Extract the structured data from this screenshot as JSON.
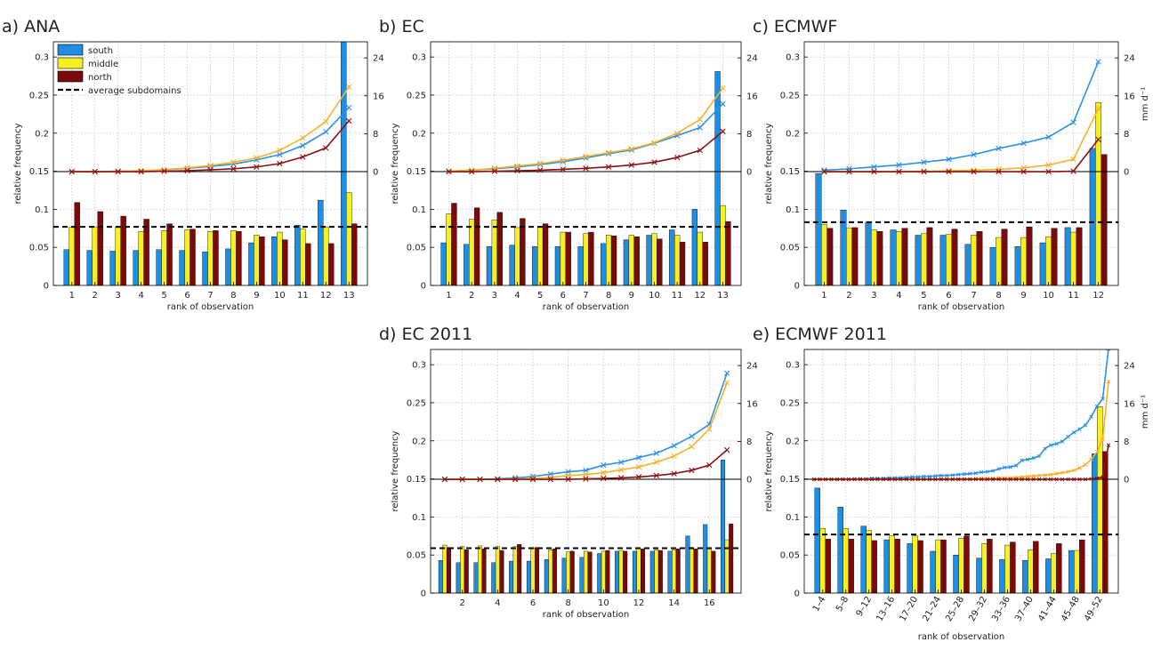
{
  "figure": {
    "x_label": "rank of observation",
    "y_label_left": "relative frequency",
    "y_label_right": "mm d⁻¹",
    "left_ticks": [
      "0",
      "0.05",
      "0.1",
      "0.15",
      "0.2",
      "0.25",
      "0.3"
    ],
    "right_ticks": [
      "0",
      "8",
      "16",
      "24"
    ]
  },
  "legend": {
    "items": [
      {
        "label": "south",
        "color": "#1f8de0"
      },
      {
        "label": "middle",
        "color": "#f5f023"
      },
      {
        "label": "north",
        "color": "#7a0a0a"
      },
      {
        "label": "average subdomains",
        "color": "#000000",
        "style": "dashed"
      }
    ]
  },
  "colors": {
    "south_bar": "#1f8de0",
    "middle_bar": "#f5f023",
    "north_bar": "#7a0a0a",
    "south_line": "#2a90e8",
    "middle_line": "#f6b12a",
    "north_line": "#8b1010"
  },
  "chart_data": [
    {
      "type": "bar",
      "title": "a) ANA",
      "categories": [
        "1",
        "2",
        "3",
        "4",
        "5",
        "6",
        "7",
        "8",
        "9",
        "10",
        "11",
        "12",
        "13"
      ],
      "series": [
        {
          "name": "south",
          "values": [
            0.047,
            0.046,
            0.045,
            0.046,
            0.047,
            0.046,
            0.044,
            0.048,
            0.056,
            0.064,
            0.079,
            0.112,
            0.32
          ]
        },
        {
          "name": "middle",
          "values": [
            0.077,
            0.077,
            0.077,
            0.071,
            0.072,
            0.073,
            0.071,
            0.072,
            0.066,
            0.07,
            0.074,
            0.077,
            0.122
          ]
        },
        {
          "name": "north",
          "values": [
            0.109,
            0.097,
            0.091,
            0.087,
            0.081,
            0.074,
            0.072,
            0.071,
            0.064,
            0.06,
            0.055,
            0.055,
            0.081
          ]
        }
      ],
      "average_subdomains": 0.077,
      "lines": [
        {
          "name": "south",
          "values": [
            0,
            0,
            0.1,
            0.2,
            0.4,
            0.7,
            1.1,
            1.6,
            2.5,
            3.6,
            5.5,
            8.4,
            13.5
          ]
        },
        {
          "name": "middle",
          "values": [
            0,
            0,
            0.1,
            0.2,
            0.4,
            0.8,
            1.3,
            2.0,
            2.9,
            4.5,
            7.1,
            10.6,
            17.9
          ]
        },
        {
          "name": "north",
          "values": [
            0,
            0,
            0,
            0,
            0.1,
            0.2,
            0.4,
            0.6,
            1.0,
            1.7,
            3.1,
            5.0,
            10.7
          ]
        }
      ],
      "ylim": [
        0,
        0.32
      ],
      "y2lim": [
        -24,
        27.4
      ],
      "xlabel": "rank of observation",
      "ylabel": "relative frequency"
    },
    {
      "type": "bar",
      "title": "b) EC",
      "categories": [
        "1",
        "2",
        "3",
        "4",
        "5",
        "6",
        "7",
        "8",
        "9",
        "10",
        "11",
        "12",
        "13"
      ],
      "series": [
        {
          "name": "south",
          "values": [
            0.056,
            0.054,
            0.051,
            0.053,
            0.051,
            0.051,
            0.051,
            0.055,
            0.06,
            0.066,
            0.073,
            0.1,
            0.281
          ]
        },
        {
          "name": "middle",
          "values": [
            0.094,
            0.087,
            0.086,
            0.076,
            0.077,
            0.07,
            0.068,
            0.066,
            0.066,
            0.068,
            0.066,
            0.07,
            0.105
          ]
        },
        {
          "name": "north",
          "values": [
            0.108,
            0.102,
            0.096,
            0.088,
            0.081,
            0.07,
            0.07,
            0.065,
            0.064,
            0.061,
            0.057,
            0.057,
            0.084
          ]
        }
      ],
      "average_subdomains": 0.077,
      "lines": [
        {
          "name": "south",
          "values": [
            0.1,
            0.3,
            0.6,
            1.0,
            1.5,
            2.1,
            2.9,
            3.8,
            4.6,
            6.0,
            7.6,
            9.3,
            14.3
          ]
        },
        {
          "name": "middle",
          "values": [
            0.1,
            0.3,
            0.7,
            1.2,
            1.7,
            2.4,
            3.2,
            4.0,
            4.8,
            6.1,
            8.1,
            11.0,
            17.6
          ]
        },
        {
          "name": "north",
          "values": [
            0,
            0,
            0.1,
            0.2,
            0.3,
            0.5,
            0.7,
            1.0,
            1.4,
            2.0,
            3.0,
            4.5,
            8.5
          ]
        }
      ],
      "ylim": [
        0,
        0.32
      ],
      "y2lim": [
        -24,
        27.4
      ],
      "xlabel": "rank of observation",
      "ylabel": "relative frequency"
    },
    {
      "type": "bar",
      "title": "c) ECMWF",
      "categories": [
        "1",
        "2",
        "3",
        "4",
        "5",
        "6",
        "7",
        "8",
        "9",
        "10",
        "11",
        "12"
      ],
      "series": [
        {
          "name": "south",
          "values": [
            0.147,
            0.099,
            0.083,
            0.073,
            0.066,
            0.066,
            0.054,
            0.05,
            0.051,
            0.056,
            0.076,
            0.18
          ]
        },
        {
          "name": "middle",
          "values": [
            0.08,
            0.075,
            0.073,
            0.071,
            0.068,
            0.067,
            0.066,
            0.063,
            0.063,
            0.064,
            0.07,
            0.24
          ]
        },
        {
          "name": "north",
          "values": [
            0.075,
            0.076,
            0.071,
            0.075,
            0.076,
            0.074,
            0.071,
            0.074,
            0.077,
            0.075,
            0.076,
            0.172
          ]
        }
      ],
      "average_subdomains": 0.083,
      "lines": [
        {
          "name": "south",
          "values": [
            0.3,
            0.6,
            1.0,
            1.4,
            2.0,
            2.6,
            3.6,
            4.9,
            6.0,
            7.3,
            10.4,
            23.2
          ]
        },
        {
          "name": "middle",
          "values": [
            0,
            0,
            0,
            0,
            0.1,
            0.2,
            0.3,
            0.5,
            0.8,
            1.4,
            2.6,
            13.3
          ]
        },
        {
          "name": "north",
          "values": [
            0,
            0,
            0,
            0,
            0,
            0,
            0,
            0,
            0,
            0,
            0.1,
            6.8
          ]
        }
      ],
      "ylim": [
        0,
        0.32
      ],
      "y2lim": [
        -24,
        27.4
      ],
      "xlabel": "rank of observation",
      "ylabel": "relative frequency"
    },
    {
      "type": "bar",
      "title": "d) EC 2011",
      "categories": [
        "1",
        "2",
        "3",
        "4",
        "5",
        "6",
        "7",
        "8",
        "9",
        "10",
        "11",
        "12",
        "13",
        "14",
        "15",
        "16",
        "17"
      ],
      "tick_labels": [
        "2",
        "4",
        "6",
        "8",
        "10",
        "12",
        "14",
        "16"
      ],
      "series": [
        {
          "name": "south",
          "values": [
            0.043,
            0.04,
            0.04,
            0.04,
            0.042,
            0.042,
            0.044,
            0.046,
            0.047,
            0.052,
            0.055,
            0.055,
            0.055,
            0.055,
            0.075,
            0.09,
            0.175
          ]
        },
        {
          "name": "middle",
          "values": [
            0.063,
            0.061,
            0.062,
            0.061,
            0.061,
            0.059,
            0.057,
            0.054,
            0.055,
            0.055,
            0.056,
            0.058,
            0.057,
            0.057,
            0.06,
            0.058,
            0.07
          ]
        },
        {
          "name": "north",
          "values": [
            0.06,
            0.057,
            0.058,
            0.056,
            0.064,
            0.06,
            0.058,
            0.055,
            0.054,
            0.056,
            0.055,
            0.058,
            0.056,
            0.058,
            0.058,
            0.055,
            0.091
          ]
        }
      ],
      "average_subdomains": 0.059,
      "lines": [
        {
          "name": "south",
          "values": [
            0,
            0,
            0,
            0.1,
            0.3,
            0.6,
            1.1,
            1.6,
            1.9,
            3.0,
            3.6,
            4.6,
            5.5,
            7.1,
            9.1,
            11.6,
            22.4
          ]
        },
        {
          "name": "middle",
          "values": [
            0,
            0,
            0,
            0,
            0.1,
            0.2,
            0.4,
            0.8,
            1.0,
            1.4,
            2.0,
            2.6,
            3.6,
            4.9,
            6.9,
            10.6,
            20.4
          ]
        },
        {
          "name": "north",
          "values": [
            0,
            0,
            0,
            0,
            0,
            0,
            0,
            0,
            0.1,
            0.2,
            0.3,
            0.5,
            0.8,
            1.2,
            1.9,
            3.0,
            6.2
          ]
        }
      ],
      "ylim": [
        0,
        0.32
      ],
      "y2lim": [
        -24,
        27.4
      ],
      "xlabel": "rank of observation",
      "ylabel": "relative frequency"
    },
    {
      "type": "bar",
      "title": "e) ECMWF 2011",
      "categories": [
        "1–4",
        "5–8",
        "9–12",
        "13–16",
        "17–20",
        "21–24",
        "25–28",
        "29–32",
        "33–36",
        "37–40",
        "41–44",
        "45–48",
        "49–52"
      ],
      "series": [
        {
          "name": "south",
          "values": [
            0.138,
            0.113,
            0.088,
            0.07,
            0.065,
            0.055,
            0.05,
            0.046,
            0.044,
            0.043,
            0.045,
            0.056,
            0.183
          ]
        },
        {
          "name": "middle",
          "values": [
            0.085,
            0.085,
            0.082,
            0.075,
            0.075,
            0.07,
            0.072,
            0.065,
            0.063,
            0.057,
            0.052,
            0.056,
            0.245
          ]
        },
        {
          "name": "north",
          "values": [
            0.071,
            0.071,
            0.069,
            0.071,
            0.069,
            0.07,
            0.075,
            0.071,
            0.067,
            0.068,
            0.065,
            0.07,
            0.186
          ]
        }
      ],
      "average_subdomains": 0.077,
      "lines": [
        {
          "name": "south",
          "values": [
            0,
            0,
            0,
            0,
            0,
            0,
            0,
            0.1,
            0.1,
            0.1,
            0.2,
            0.2,
            0.2,
            0.3,
            0.3,
            0.3,
            0.4,
            0.5,
            0.5,
            0.6,
            0.6,
            0.7,
            0.8,
            0.8,
            0.9,
            1.0,
            1.1,
            1.2,
            1.3,
            1.5,
            1.6,
            1.8,
            2.2,
            2.5,
            2.6,
            2.9,
            4.0,
            4.2,
            4.5,
            4.9,
            6.5,
            7.2,
            7.5,
            8.0,
            9.0,
            9.9,
            10.6,
            11.4,
            13.2,
            15.4,
            17.0,
            27.5
          ]
        },
        {
          "name": "middle",
          "values": [
            0,
            0,
            0,
            0,
            0,
            0,
            0,
            0,
            0,
            0,
            0,
            0,
            0,
            0,
            0,
            0,
            0,
            0,
            0,
            0,
            0,
            0,
            0.1,
            0.1,
            0.1,
            0.1,
            0.1,
            0.1,
            0.2,
            0.2,
            0.2,
            0.2,
            0.3,
            0.3,
            0.3,
            0.4,
            0.5,
            0.6,
            0.7,
            0.8,
            0.9,
            1.0,
            1.2,
            1.4,
            1.6,
            1.9,
            2.4,
            3.1,
            4.2,
            5.8,
            8.5,
            20.6
          ]
        },
        {
          "name": "north",
          "values": [
            0,
            0,
            0,
            0,
            0,
            0,
            0,
            0,
            0,
            0,
            0,
            0,
            0,
            0,
            0,
            0,
            0,
            0,
            0,
            0,
            0,
            0,
            0,
            0,
            0,
            0,
            0,
            0,
            0,
            0,
            0,
            0,
            0,
            0,
            0,
            0,
            0,
            0,
            0,
            0,
            0,
            0,
            0,
            0,
            0,
            0,
            0,
            0,
            0.1,
            0.2,
            0.5,
            7.2
          ]
        }
      ],
      "ylim": [
        0,
        0.32
      ],
      "y2lim": [
        -24,
        27.4
      ],
      "xlabel": "rank of observation",
      "ylabel": "relative frequency"
    }
  ]
}
